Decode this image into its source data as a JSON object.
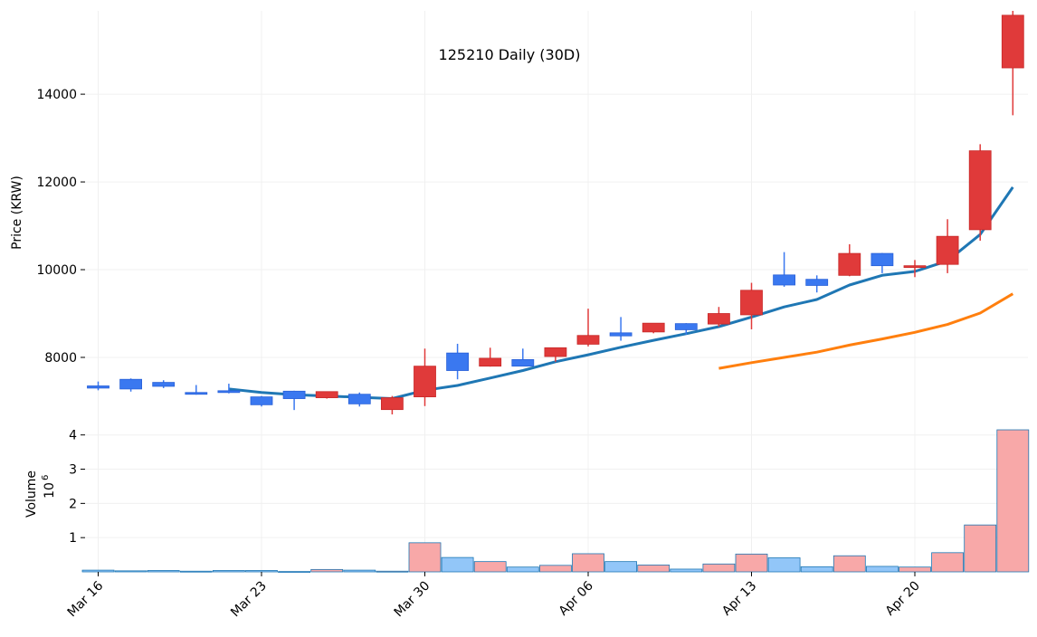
{
  "chart_data": {
    "type": "candlestick",
    "title": "125210 Daily (30D)",
    "ylabel": "Price (KRW)",
    "volume_label": "Volume",
    "volume_scale_label": "10",
    "volume_scale_exp": "6",
    "x_tick_labels": [
      "Mar 16",
      "Mar 23",
      "Mar 30",
      "Apr 06",
      "Apr 13",
      "Apr 20"
    ],
    "price_ticks": [
      "8000",
      "10000",
      "12000",
      "14000"
    ],
    "volume_ticks": [
      "1",
      "2",
      "3",
      "4"
    ],
    "price_ylim": [
      6700,
      15900
    ],
    "volume_ylim": [
      0,
      4.6
    ],
    "colors": {
      "up": "#e03a3a",
      "down": "#3a78f0",
      "vol_up": "#f8a8a8",
      "vol_down": "#92c6f8",
      "ma_short": "#1f77b4",
      "ma_long": "#ff7f0e"
    },
    "candles": [
      {
        "date": "03-16",
        "open": 7350,
        "high": 7450,
        "low": 7250,
        "close": 7300,
        "volume": 0.05
      },
      {
        "date": "03-17",
        "open": 7500,
        "high": 7520,
        "low": 7220,
        "close": 7280,
        "volume": 0.03
      },
      {
        "date": "03-18",
        "open": 7430,
        "high": 7480,
        "low": 7300,
        "close": 7340,
        "volume": 0.04
      },
      {
        "date": "03-19",
        "open": 7200,
        "high": 7370,
        "low": 7150,
        "close": 7190,
        "volume": 0.02
      },
      {
        "date": "03-20",
        "open": 7240,
        "high": 7400,
        "low": 7180,
        "close": 7200,
        "volume": 0.04
      },
      {
        "date": "03-23",
        "open": 7100,
        "high": 7120,
        "low": 6880,
        "close": 6920,
        "volume": 0.04
      },
      {
        "date": "03-24",
        "open": 7230,
        "high": 7240,
        "low": 6800,
        "close": 7060,
        "volume": 0.01
      },
      {
        "date": "03-25",
        "open": 7080,
        "high": 7220,
        "low": 7060,
        "close": 7220,
        "volume": 0.07
      },
      {
        "date": "03-26",
        "open": 7160,
        "high": 7200,
        "low": 6880,
        "close": 6940,
        "volume": 0.05
      },
      {
        "date": "03-27",
        "open": 6810,
        "high": 7120,
        "low": 6700,
        "close": 7080,
        "volume": 0.02
      },
      {
        "date": "03-30",
        "open": 7100,
        "high": 8200,
        "low": 6890,
        "close": 7800,
        "volume": 0.85
      },
      {
        "date": "03-31",
        "open": 8100,
        "high": 8310,
        "low": 7500,
        "close": 7700,
        "volume": 0.42
      },
      {
        "date": "04-01",
        "open": 7800,
        "high": 8220,
        "low": 7790,
        "close": 7980,
        "volume": 0.3
      },
      {
        "date": "04-02",
        "open": 7950,
        "high": 8200,
        "low": 7800,
        "close": 7800,
        "volume": 0.14
      },
      {
        "date": "04-03",
        "open": 8020,
        "high": 8180,
        "low": 7900,
        "close": 8220,
        "volume": 0.19
      },
      {
        "date": "04-06",
        "open": 8300,
        "high": 9110,
        "low": 8250,
        "close": 8500,
        "volume": 0.53
      },
      {
        "date": "04-07",
        "open": 8560,
        "high": 8920,
        "low": 8380,
        "close": 8490,
        "volume": 0.3
      },
      {
        "date": "04-08",
        "open": 8580,
        "high": 8780,
        "low": 8550,
        "close": 8780,
        "volume": 0.2
      },
      {
        "date": "04-09",
        "open": 8770,
        "high": 8780,
        "low": 8520,
        "close": 8630,
        "volume": 0.08
      },
      {
        "date": "04-10",
        "open": 8760,
        "high": 9150,
        "low": 8700,
        "close": 9000,
        "volume": 0.23
      },
      {
        "date": "04-13",
        "open": 8970,
        "high": 9700,
        "low": 8640,
        "close": 9530,
        "volume": 0.52
      },
      {
        "date": "04-14",
        "open": 9880,
        "high": 10400,
        "low": 9610,
        "close": 9650,
        "volume": 0.41
      },
      {
        "date": "04-15",
        "open": 9780,
        "high": 9870,
        "low": 9480,
        "close": 9640,
        "volume": 0.15
      },
      {
        "date": "04-16",
        "open": 9870,
        "high": 10580,
        "low": 9850,
        "close": 10370,
        "volume": 0.47
      },
      {
        "date": "04-17",
        "open": 10370,
        "high": 10380,
        "low": 9920,
        "close": 10090,
        "volume": 0.16
      },
      {
        "date": "04-20",
        "open": 10060,
        "high": 10220,
        "low": 9830,
        "close": 10090,
        "volume": 0.14
      },
      {
        "date": "04-21",
        "open": 10120,
        "high": 11150,
        "low": 9920,
        "close": 10760,
        "volume": 0.56
      },
      {
        "date": "04-22",
        "open": 10910,
        "high": 12860,
        "low": 10660,
        "close": 12710,
        "volume": 1.37
      },
      {
        "date": "04-23",
        "open": 14600,
        "high": 15900,
        "low": 13520,
        "close": 15800,
        "volume": 4.15
      }
    ],
    "ma_short": [
      null,
      null,
      null,
      null,
      7280,
      7200,
      7150,
      7120,
      7090,
      7060,
      7250,
      7360,
      7530,
      7700,
      7900,
      8060,
      8230,
      8390,
      8540,
      8700,
      8920,
      9150,
      9320,
      9650,
      9870,
      9960,
      10200,
      10800,
      11880
    ],
    "ma_long": [
      null,
      null,
      null,
      null,
      null,
      null,
      null,
      null,
      null,
      null,
      null,
      null,
      null,
      null,
      null,
      null,
      null,
      null,
      null,
      7750,
      7880,
      8000,
      8120,
      8280,
      8420,
      8570,
      8750,
      9010,
      9450
    ]
  }
}
